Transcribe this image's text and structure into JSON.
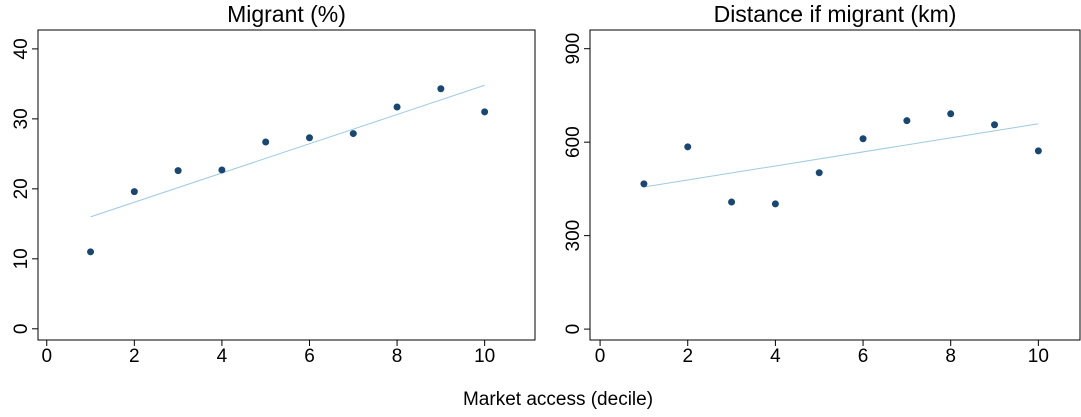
{
  "chart_data": [
    {
      "type": "scatter",
      "title": "Migrant (%)",
      "x": [
        1,
        2,
        3,
        4,
        5,
        6,
        7,
        8,
        9,
        10
      ],
      "values": [
        11.0,
        19.6,
        22.6,
        22.7,
        26.7,
        27.3,
        27.9,
        31.7,
        34.3,
        31.0
      ],
      "color": "#1a476f",
      "fit": {
        "x": [
          1,
          10
        ],
        "values": [
          16.0,
          34.8
        ],
        "color": "#9ecae1"
      },
      "xlim": [
        -0.2,
        11.15
      ],
      "xticks": [
        0,
        2,
        4,
        6,
        8,
        10
      ],
      "ylim": [
        -1.6,
        42.7
      ],
      "yticks": [
        0,
        10,
        20,
        30,
        40
      ]
    },
    {
      "type": "scatter",
      "title": "Distance if migrant (km)",
      "x": [
        1,
        2,
        3,
        4,
        5,
        6,
        7,
        8,
        9,
        10
      ],
      "values": [
        466,
        585,
        408,
        402,
        502,
        611,
        669,
        691,
        656,
        572
      ],
      "color": "#1a476f",
      "fit": {
        "x": [
          1,
          10
        ],
        "values": [
          456,
          659
        ],
        "color": "#9ecae1"
      },
      "xlim": [
        -0.23,
        10.95
      ],
      "xticks": [
        0,
        2,
        4,
        6,
        8,
        10
      ],
      "ylim": [
        -35,
        960
      ],
      "yticks": [
        0,
        300,
        600,
        900
      ]
    }
  ],
  "xlabel": "Market access (decile)"
}
